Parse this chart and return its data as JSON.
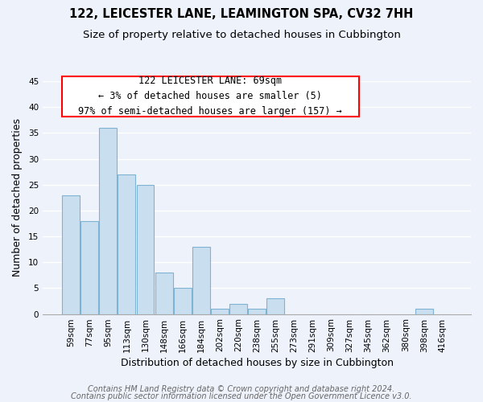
{
  "title1": "122, LEICESTER LANE, LEAMINGTON SPA, CV32 7HH",
  "title2": "Size of property relative to detached houses in Cubbington",
  "xlabel": "Distribution of detached houses by size in Cubbington",
  "ylabel": "Number of detached properties",
  "bar_labels": [
    "59sqm",
    "77sqm",
    "95sqm",
    "113sqm",
    "130sqm",
    "148sqm",
    "166sqm",
    "184sqm",
    "202sqm",
    "220sqm",
    "238sqm",
    "255sqm",
    "273sqm",
    "291sqm",
    "309sqm",
    "327sqm",
    "345sqm",
    "362sqm",
    "380sqm",
    "398sqm",
    "416sqm"
  ],
  "bar_heights": [
    23,
    18,
    36,
    27,
    25,
    8,
    5,
    13,
    1,
    2,
    1,
    3,
    0,
    0,
    0,
    0,
    0,
    0,
    0,
    1,
    0
  ],
  "bar_color": "#c9dff0",
  "bar_edge_color": "#7fb3d3",
  "ylim": [
    0,
    45
  ],
  "yticks": [
    0,
    5,
    10,
    15,
    20,
    25,
    30,
    35,
    40,
    45
  ],
  "annotation_line1": "122 LEICESTER LANE: 69sqm",
  "annotation_line2": "← 3% of detached houses are smaller (5)",
  "annotation_line3": "97% of semi-detached houses are larger (157) →",
  "footer1": "Contains HM Land Registry data © Crown copyright and database right 2024.",
  "footer2": "Contains public sector information licensed under the Open Government Licence v3.0.",
  "bg_color": "#eef2fb",
  "grid_color": "#ffffff",
  "title_fontsize": 10.5,
  "subtitle_fontsize": 9.5,
  "axis_label_fontsize": 9,
  "tick_fontsize": 7.5,
  "footer_fontsize": 7,
  "annotation_fontsize": 8.5
}
